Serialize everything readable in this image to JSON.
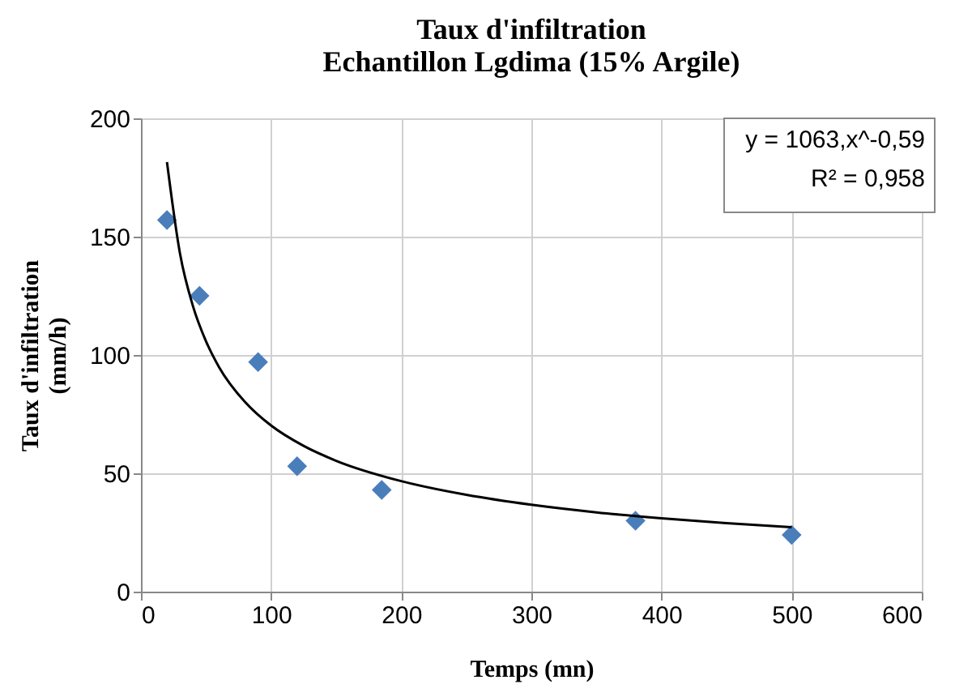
{
  "chart_data": {
    "type": "scatter",
    "title": "Taux d'infiltration\nEchantillon Lgdima (15% Argile)",
    "xlabel": "Temps (mn)",
    "ylabel": "Taux d'infiltration\n(mm/h)",
    "series": [
      {
        "color": "#4a7ebb",
        "marker": "diamond",
        "x": [
          20,
          45,
          90,
          120,
          185,
          380,
          500
        ],
        "values": [
          157,
          125,
          97,
          53,
          43,
          30,
          24
        ]
      },
      {
        "type": "line",
        "color": "#000000",
        "line_style": "solid",
        "marker": "none",
        "x": [
          20,
          30,
          40,
          50,
          60,
          80,
          100,
          125,
          150,
          200,
          250,
          300,
          350,
          400,
          450,
          500
        ],
        "values": [
          181.5,
          142.9,
          120.6,
          105.8,
          94.9,
          80.1,
          70.2,
          61.6,
          55.3,
          46.7,
          40.9,
          36.7,
          33.5,
          31.0,
          28.9,
          27.2
        ]
      }
    ],
    "xlim": [
      0,
      600
    ],
    "xticks": [
      0,
      100,
      200,
      300,
      400,
      500,
      600
    ],
    "ylim": [
      0,
      200
    ],
    "yticks": [
      0,
      50,
      100,
      150,
      200
    ],
    "grid": true,
    "annotations": [
      "y = 1063,x^-0,59",
      "R² = 0,958"
    ]
  }
}
